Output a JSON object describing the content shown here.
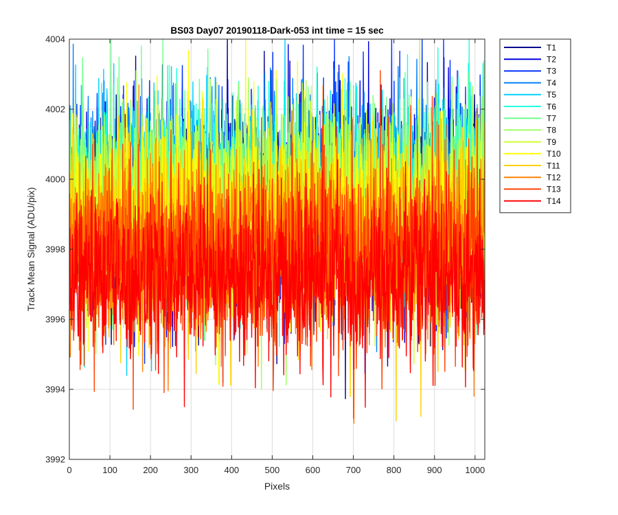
{
  "chart_data": {
    "type": "line",
    "title": "BS03 Day07 20190118-Dark-053 int time = 15 sec",
    "xlabel": "Pixels",
    "ylabel": "Track Mean Signal (ADU/pix)",
    "xlim": [
      0,
      1024
    ],
    "ylim": [
      3992,
      4004
    ],
    "xticks": [
      0,
      100,
      200,
      300,
      400,
      500,
      600,
      700,
      800,
      900,
      1000
    ],
    "yticks": [
      3992,
      3994,
      3996,
      3998,
      4000,
      4002,
      4004
    ],
    "grid": true,
    "legend_position": "outside-top-right",
    "x_points": 1024,
    "series": [
      {
        "name": "T1",
        "color": "#00008f",
        "mean": 3999.2,
        "spread": 1.6
      },
      {
        "name": "T2",
        "color": "#0000df",
        "mean": 3999.3,
        "spread": 1.6
      },
      {
        "name": "T3",
        "color": "#0030ff",
        "mean": 3999.4,
        "spread": 1.6
      },
      {
        "name": "T4",
        "color": "#0080ff",
        "mean": 3999.5,
        "spread": 1.55
      },
      {
        "name": "T5",
        "color": "#00cfff",
        "mean": 3999.7,
        "spread": 1.5
      },
      {
        "name": "T6",
        "color": "#20ffdf",
        "mean": 3999.6,
        "spread": 1.5
      },
      {
        "name": "T7",
        "color": "#70ff8f",
        "mean": 3999.5,
        "spread": 1.5
      },
      {
        "name": "T8",
        "color": "#9fff60",
        "mean": 3999.3,
        "spread": 1.5
      },
      {
        "name": "T9",
        "color": "#cfff30",
        "mean": 3999.1,
        "spread": 1.5
      },
      {
        "name": "T10",
        "color": "#ffff00",
        "mean": 3998.8,
        "spread": 1.5
      },
      {
        "name": "T11",
        "color": "#ffcf00",
        "mean": 3998.4,
        "spread": 1.5
      },
      {
        "name": "T12",
        "color": "#ff8000",
        "mean": 3998.0,
        "spread": 1.5
      },
      {
        "name": "T13",
        "color": "#ff4000",
        "mean": 3997.8,
        "spread": 1.5
      },
      {
        "name": "T14",
        "color": "#ff0000",
        "mean": 3997.2,
        "spread": 1.3
      }
    ]
  }
}
